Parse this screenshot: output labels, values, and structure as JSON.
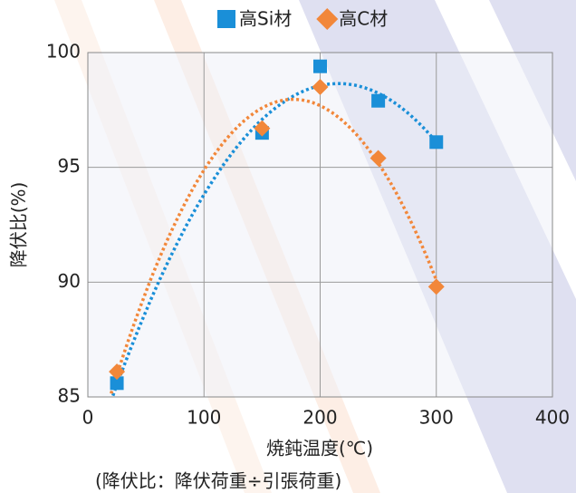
{
  "chart_data": {
    "type": "scatter",
    "xlabel": "焼鈍温度(℃)",
    "ylabel": "降伏比(%)",
    "note": "(降伏比：降伏荷重÷引張荷重)",
    "x": [
      25,
      150,
      200,
      250,
      300
    ],
    "series": [
      {
        "name": "高Si材",
        "color": "#1a8fd8",
        "marker": "square",
        "values": [
          85.6,
          96.5,
          99.4,
          97.9,
          96.1
        ]
      },
      {
        "name": "高C材",
        "color": "#f2873a",
        "marker": "diamond",
        "values": [
          86.1,
          96.7,
          98.5,
          95.4,
          89.8
        ]
      }
    ],
    "trendline": "polynomial",
    "xlim": [
      0,
      400
    ],
    "xticks": [
      0,
      100,
      200,
      300,
      400
    ],
    "ylim": [
      85,
      100
    ],
    "yticks": [
      85,
      90,
      95,
      100
    ],
    "grid": true,
    "legend": "top"
  }
}
